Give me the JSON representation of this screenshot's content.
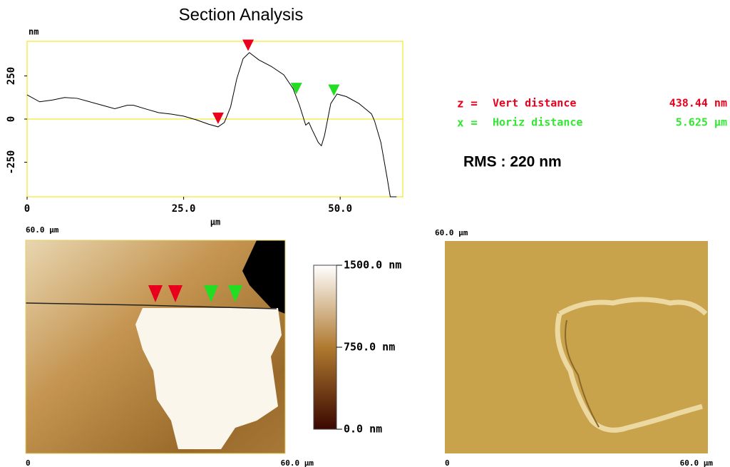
{
  "chart_data": {
    "type": "line",
    "title": "Section Analysis",
    "y_label": "nm",
    "x_label": "μm",
    "x": [
      0,
      2,
      4,
      6,
      8,
      10,
      12,
      14,
      16,
      17,
      19,
      21,
      23,
      25,
      27,
      29,
      30.5,
      31.5,
      32.5,
      33.5,
      34.5,
      35.5,
      37,
      39,
      41,
      42.5,
      43.5,
      44.5,
      45,
      45.5,
      46.5,
      47,
      47.5,
      48.5,
      49.5,
      51,
      53,
      55,
      55.5,
      56.5,
      57.5,
      58,
      59
    ],
    "series": [
      {
        "color": "#000000",
        "values": [
          140,
          100,
          110,
          125,
          120,
          100,
          80,
          60,
          80,
          80,
          58,
          37,
          29,
          17,
          -4,
          -30,
          -45,
          -20,
          70,
          235,
          350,
          385,
          343,
          305,
          256,
          175,
          80,
          -35,
          -20,
          -60,
          -135,
          -155,
          -95,
          90,
          145,
          130,
          90,
          30,
          -12,
          -135,
          -340,
          -450,
          -450
        ]
      }
    ],
    "xlim": [
      0,
      60
    ],
    "xticks": [
      0,
      {
        "value": 25,
        "label": "25.0"
      },
      {
        "value": 50,
        "label": "50.0"
      }
    ],
    "ylim": [
      -450,
      450
    ],
    "yticks": [
      -250,
      0,
      250
    ],
    "zero_line_color": "#f0e000",
    "frame_color": "#f0e000",
    "cursors": {
      "x": [
        30.5,
        35.3,
        43,
        49
      ],
      "colors": [
        "#e8001c",
        "#e8001c",
        "#22dd22",
        "#22dd22"
      ]
    }
  },
  "measurements": [
    {
      "symbol": "z =",
      "label": "Vert distance",
      "value": "438.44 nm",
      "color": "#e8001c"
    },
    {
      "symbol": "x =",
      "label": "Horiz distance",
      "value": "5.625 μm",
      "color": "#33e833"
    }
  ],
  "rms": "RMS : 220 nm",
  "height_image": {
    "top_label": "60.0 μm",
    "origin_label": "0",
    "right_label": "60.0 μm"
  },
  "colorbar": {
    "lim": [
      0,
      1500
    ],
    "ticks": [
      {
        "value": 1500,
        "label": "1500.0 nm"
      },
      {
        "value": 750,
        "label": "750.0 nm"
      },
      {
        "value": 0,
        "label": "0.0 nm"
      }
    ]
  },
  "amplitude_image": {
    "top_label": "60.0 μm",
    "origin_label": "0",
    "right_label": "60.0 μm"
  }
}
